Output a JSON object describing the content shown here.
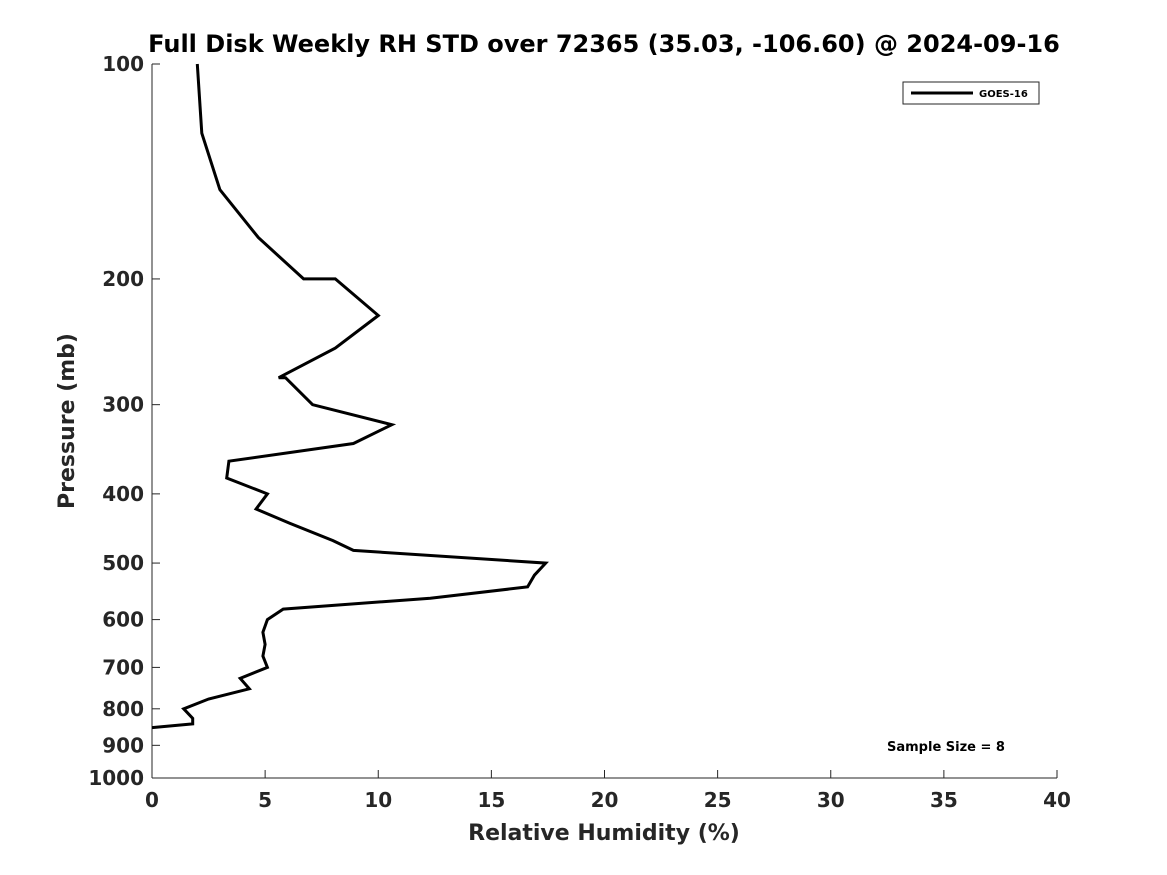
{
  "chart_data": {
    "type": "line",
    "title": "Full Disk Weekly RH STD over 72365 (35.03, -106.60) @ 2024-09-16",
    "xlabel": "Relative Humidity (%)",
    "ylabel": "Pressure (mb)",
    "xlim": [
      0,
      40
    ],
    "ylim": [
      100,
      1000
    ],
    "y_scale": "log",
    "y_reversed": true,
    "x_ticks": [
      0,
      5,
      10,
      15,
      20,
      25,
      30,
      35,
      40
    ],
    "y_ticks": [
      100,
      200,
      300,
      400,
      500,
      600,
      700,
      800,
      900,
      1000
    ],
    "grid": false,
    "legend": {
      "placement": "top-right",
      "entries": [
        "GOES-16"
      ]
    },
    "annotation": "Sample Size = 8",
    "series": [
      {
        "name": "GOES-16",
        "color": "#000000",
        "points": [
          {
            "x": 2.0,
            "p": 100
          },
          {
            "x": 2.2,
            "p": 125
          },
          {
            "x": 3.0,
            "p": 150
          },
          {
            "x": 4.7,
            "p": 175
          },
          {
            "x": 6.7,
            "p": 200
          },
          {
            "x": 8.1,
            "p": 200
          },
          {
            "x": 10.0,
            "p": 225
          },
          {
            "x": 8.1,
            "p": 250
          },
          {
            "x": 5.6,
            "p": 275
          },
          {
            "x": 5.9,
            "p": 275
          },
          {
            "x": 7.1,
            "p": 300
          },
          {
            "x": 10.6,
            "p": 320
          },
          {
            "x": 8.9,
            "p": 340
          },
          {
            "x": 3.4,
            "p": 360
          },
          {
            "x": 3.3,
            "p": 380
          },
          {
            "x": 5.1,
            "p": 400
          },
          {
            "x": 4.6,
            "p": 420
          },
          {
            "x": 6.1,
            "p": 440
          },
          {
            "x": 8.0,
            "p": 465
          },
          {
            "x": 8.9,
            "p": 480
          },
          {
            "x": 17.4,
            "p": 500
          },
          {
            "x": 16.9,
            "p": 520
          },
          {
            "x": 16.6,
            "p": 540
          },
          {
            "x": 12.3,
            "p": 560
          },
          {
            "x": 5.8,
            "p": 580
          },
          {
            "x": 5.1,
            "p": 600
          },
          {
            "x": 4.9,
            "p": 625
          },
          {
            "x": 5.0,
            "p": 650
          },
          {
            "x": 4.9,
            "p": 675
          },
          {
            "x": 5.1,
            "p": 700
          },
          {
            "x": 3.9,
            "p": 725
          },
          {
            "x": 4.3,
            "p": 750
          },
          {
            "x": 2.5,
            "p": 775
          },
          {
            "x": 1.4,
            "p": 800
          },
          {
            "x": 1.8,
            "p": 825
          },
          {
            "x": 1.8,
            "p": 840
          },
          {
            "x": 0.0,
            "p": 850
          }
        ]
      }
    ]
  }
}
